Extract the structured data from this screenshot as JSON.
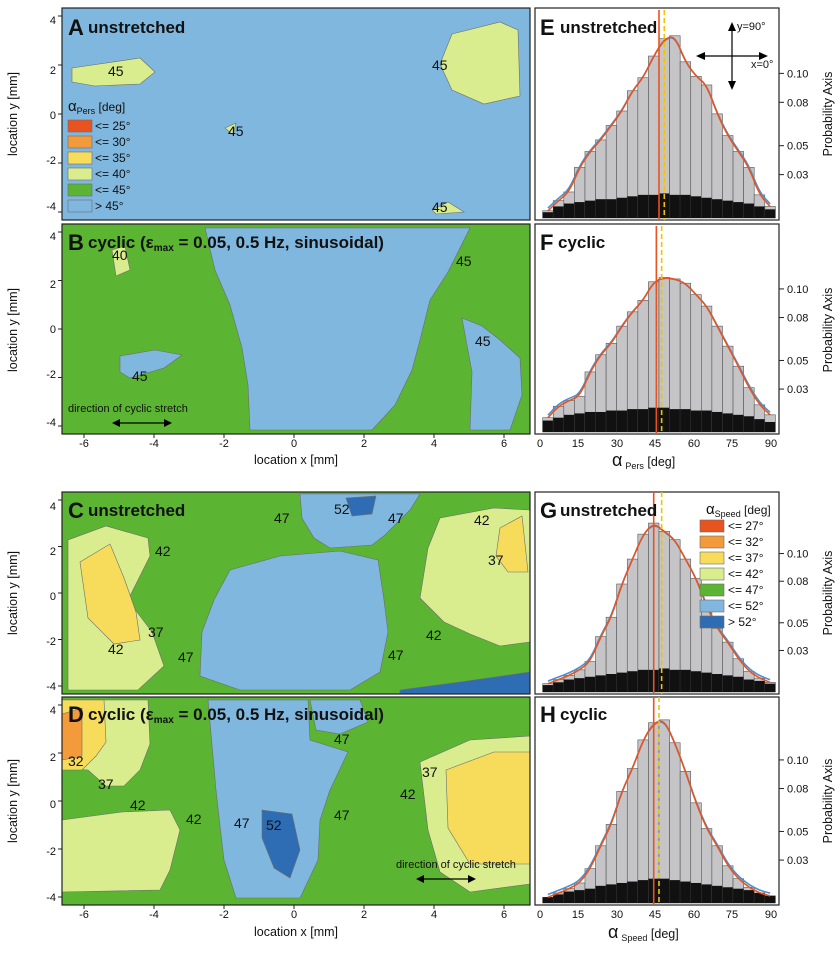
{
  "colors": {
    "c1": "#e8531f",
    "c2": "#f39a3a",
    "c3": "#f7dc5c",
    "c4": "#d9ec8e",
    "c5": "#5bb432",
    "c6": "#7fb7de",
    "c7": "#2e6db4",
    "bar": "#c5c5c7",
    "black": "#111111",
    "fit_orange": "#e8531f",
    "fit_blue": "#4a8fd0",
    "dashed": "#f2c200"
  },
  "panels": {
    "A": {
      "letter": "A",
      "title": "unstretched"
    },
    "B": {
      "letter": "B",
      "title_pre": "cyclic (",
      "eps": "ε",
      "eps_sub": "max",
      "title_post": " = 0.05, 0.5 Hz, sinusoidal)",
      "arrow_label": "direction of cyclic stretch"
    },
    "C": {
      "letter": "C",
      "title": "unstretched"
    },
    "D": {
      "letter": "D",
      "title_pre": "cyclic (",
      "eps": "ε",
      "eps_sub": "max",
      "title_post": " = 0.05, 0.5 Hz, sinusoidal)",
      "arrow_label": "direction of cyclic stretch"
    },
    "E": {
      "letter": "E",
      "title": "unstretched",
      "dir_y": "y=90°",
      "dir_x": "x=0°"
    },
    "F": {
      "letter": "F",
      "title": "cyclic"
    },
    "G": {
      "letter": "G",
      "title": "unstretched"
    },
    "H": {
      "letter": "H",
      "title": "cyclic"
    }
  },
  "axes": {
    "xlabel": "location x [mm]",
    "ylabel": "location y [mm]",
    "yticks": [
      "4",
      "2",
      "0",
      "-2",
      "-4"
    ],
    "xticks": [
      "-6",
      "-4",
      "-2",
      "0",
      "2",
      "4",
      "6"
    ],
    "hist_xticks": [
      "0",
      "15",
      "30",
      "45",
      "60",
      "75",
      "90"
    ],
    "hist_yticks": [
      "0.10",
      "0.08",
      "0.05",
      "0.03"
    ],
    "prob_label": "Probability Axis",
    "alpha": "α",
    "pers_sub": "Pers",
    "speed_sub": "Speed",
    "deg_unit": " [deg]"
  },
  "legend_pers": {
    "title": "α",
    "title_sub": "Pers",
    "title_unit": " [deg]",
    "items": [
      "<= 25°",
      "<= 30°",
      "<= 35°",
      "<= 40°",
      "<= 45°",
      ">  45°"
    ]
  },
  "legend_speed": {
    "title": "α",
    "title_sub": "Speed",
    "title_unit": " [deg]",
    "items": [
      "<= 27°",
      "<= 32°",
      "<= 37°",
      "<= 42°",
      "<= 47°",
      "<= 52°",
      ">  52°"
    ]
  },
  "contour_labels": {
    "A": [
      "45",
      "45",
      "45",
      "45"
    ],
    "B": [
      "40",
      "45",
      "45",
      "45"
    ],
    "C": [
      "47",
      "52",
      "47",
      "42",
      "42",
      "37",
      "37",
      "42",
      "47",
      "42",
      "47"
    ],
    "D": [
      "32",
      "37",
      "42",
      "42",
      "47",
      "52",
      "47",
      "47",
      "37",
      "42"
    ]
  },
  "chart_data": [
    {
      "panel": "E",
      "type": "bar",
      "title": "unstretched",
      "x": [
        3,
        7,
        11,
        15,
        19,
        23,
        27,
        31,
        35,
        39,
        43,
        47,
        51,
        55,
        59,
        63,
        67,
        71,
        75,
        79,
        83,
        87
      ],
      "values": [
        0.005,
        0.012,
        0.018,
        0.035,
        0.046,
        0.054,
        0.064,
        0.074,
        0.088,
        0.097,
        0.112,
        0.124,
        0.126,
        0.108,
        0.098,
        0.092,
        0.072,
        0.057,
        0.046,
        0.035,
        0.016,
        0.008
      ],
      "black_values": [
        0.004,
        0.008,
        0.01,
        0.011,
        0.012,
        0.013,
        0.013,
        0.014,
        0.015,
        0.016,
        0.016,
        0.017,
        0.016,
        0.016,
        0.015,
        0.014,
        0.013,
        0.012,
        0.011,
        0.01,
        0.008,
        0.006
      ],
      "xlim": [
        0,
        90
      ],
      "ylim": [
        0,
        0.13
      ],
      "vline": 45,
      "vline_dashed": 47
    },
    {
      "panel": "F",
      "type": "bar",
      "title": "cyclic",
      "x": [
        3,
        7,
        11,
        15,
        19,
        23,
        27,
        31,
        35,
        39,
        43,
        47,
        51,
        55,
        59,
        63,
        67,
        71,
        75,
        79,
        83,
        87
      ],
      "values": [
        0.01,
        0.018,
        0.022,
        0.025,
        0.042,
        0.054,
        0.062,
        0.074,
        0.084,
        0.092,
        0.105,
        0.108,
        0.107,
        0.104,
        0.096,
        0.088,
        0.074,
        0.06,
        0.046,
        0.031,
        0.019,
        0.012
      ],
      "black_values": [
        0.008,
        0.01,
        0.012,
        0.013,
        0.014,
        0.014,
        0.015,
        0.015,
        0.016,
        0.016,
        0.017,
        0.017,
        0.016,
        0.016,
        0.015,
        0.015,
        0.014,
        0.013,
        0.012,
        0.011,
        0.009,
        0.007
      ],
      "xlim": [
        0,
        90
      ],
      "ylim": [
        0,
        0.13
      ],
      "vline": 44,
      "vline_dashed": 46
    },
    {
      "panel": "G",
      "type": "bar",
      "title": "unstretched",
      "x": [
        3,
        7,
        11,
        15,
        19,
        23,
        27,
        31,
        35,
        39,
        43,
        47,
        51,
        55,
        59,
        63,
        67,
        71,
        75,
        79,
        83,
        87
      ],
      "values": [
        0.006,
        0.009,
        0.012,
        0.016,
        0.022,
        0.04,
        0.054,
        0.078,
        0.096,
        0.114,
        0.122,
        0.116,
        0.11,
        0.096,
        0.082,
        0.062,
        0.046,
        0.036,
        0.024,
        0.015,
        0.01,
        0.007
      ],
      "black_values": [
        0.005,
        0.007,
        0.009,
        0.01,
        0.011,
        0.012,
        0.013,
        0.014,
        0.015,
        0.016,
        0.016,
        0.017,
        0.016,
        0.016,
        0.015,
        0.014,
        0.013,
        0.012,
        0.011,
        0.009,
        0.008,
        0.006
      ],
      "xlim": [
        0,
        90
      ],
      "ylim": [
        0,
        0.13
      ],
      "vline": 43,
      "vline_dashed": 46
    },
    {
      "panel": "H",
      "type": "bar",
      "title": "cyclic",
      "x": [
        3,
        7,
        11,
        15,
        19,
        23,
        27,
        31,
        35,
        39,
        43,
        47,
        51,
        55,
        59,
        63,
        67,
        71,
        75,
        79,
        83,
        87
      ],
      "values": [
        0.004,
        0.007,
        0.01,
        0.014,
        0.024,
        0.04,
        0.055,
        0.078,
        0.094,
        0.114,
        0.126,
        0.128,
        0.112,
        0.092,
        0.07,
        0.052,
        0.04,
        0.026,
        0.017,
        0.011,
        0.007,
        0.005
      ],
      "black_values": [
        0.004,
        0.006,
        0.008,
        0.009,
        0.01,
        0.012,
        0.013,
        0.014,
        0.015,
        0.016,
        0.017,
        0.017,
        0.016,
        0.015,
        0.014,
        0.013,
        0.012,
        0.011,
        0.01,
        0.009,
        0.007,
        0.005
      ],
      "xlim": [
        0,
        90
      ],
      "ylim": [
        0,
        0.13
      ],
      "vline": 43,
      "vline_dashed": 45
    }
  ]
}
